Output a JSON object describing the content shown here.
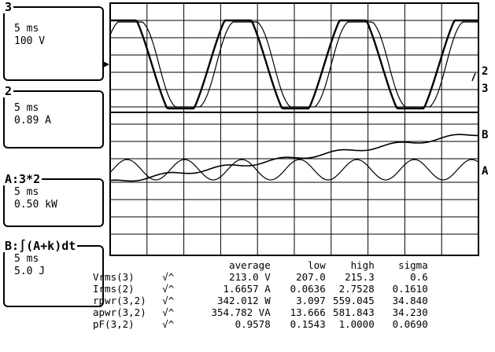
{
  "channels": [
    {
      "id": "3",
      "time": "5 ms",
      "scale": "100 V"
    },
    {
      "id": "2",
      "time": "5 ms",
      "scale": "0.89 A"
    },
    {
      "id": "A:3*2",
      "time": "5 ms",
      "scale": "0.50 kW"
    },
    {
      "id": "B:∫(A+k)dt",
      "time": "5 ms",
      "scale": "5.0 J"
    }
  ],
  "trace_labels": {
    "t2": "2",
    "t3": "3",
    "tB": "B",
    "tA": "A"
  },
  "table": {
    "headers": [
      "average",
      "low",
      "high",
      "sigma"
    ],
    "rows": [
      {
        "name": "Vrms(3)",
        "sym": "√^",
        "average": "213.0 V",
        "low": "207.0",
        "high": "215.3",
        "sigma": "0.6"
      },
      {
        "name": "Irms(2)",
        "sym": "√^",
        "average": "1.6657 A",
        "low": "0.0636",
        "high": "2.7528",
        "sigma": "0.1610"
      },
      {
        "name": "rpwr(3,2)",
        "sym": "√^",
        "average": "342.012 W",
        "low": "3.097",
        "high": "559.045",
        "sigma": "34.840"
      },
      {
        "name": "apwr(3,2)",
        "sym": "√^",
        "average": "354.782 VA",
        "low": "13.666",
        "high": "581.843",
        "sigma": "34.230"
      },
      {
        "name": "pF(3,2)",
        "sym": "√^",
        "average": "0.9578",
        "low": "0.1543",
        "high": "1.0000",
        "sigma": "0.0690"
      }
    ]
  }
}
